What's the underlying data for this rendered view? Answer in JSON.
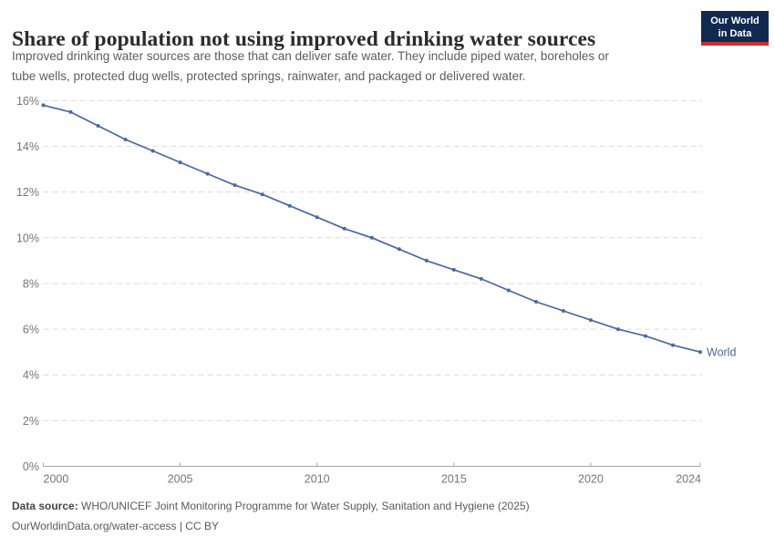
{
  "header": {
    "title": "Share of population not using improved drinking water sources",
    "subtitle_line1": "Improved drinking water sources are those that can deliver safe water. They include piped water, boreholes or",
    "subtitle_line2": "tube wells, protected dug wells, protected springs, rainwater, and packaged or delivered water."
  },
  "logo": {
    "line1": "Our World",
    "line2": "in Data"
  },
  "chart_data": {
    "type": "line",
    "title": "Share of population not using improved drinking water sources",
    "x": [
      2000,
      2001,
      2002,
      2003,
      2004,
      2005,
      2006,
      2007,
      2008,
      2009,
      2010,
      2011,
      2012,
      2013,
      2014,
      2015,
      2016,
      2017,
      2018,
      2019,
      2020,
      2021,
      2022,
      2023,
      2024
    ],
    "series": [
      {
        "name": "World",
        "color": "#4a68a2",
        "values": [
          15.8,
          15.5,
          14.9,
          14.3,
          13.8,
          13.3,
          12.8,
          12.3,
          11.9,
          11.4,
          10.9,
          10.4,
          10.0,
          9.5,
          9.0,
          8.6,
          8.2,
          7.7,
          7.2,
          6.8,
          6.4,
          6.0,
          5.7,
          5.3,
          5.0
        ]
      }
    ],
    "xlabel": "",
    "ylabel": "",
    "xlim": [
      2000,
      2024
    ],
    "ylim": [
      0,
      16
    ],
    "yticks": [
      0,
      2,
      4,
      6,
      8,
      10,
      12,
      14,
      16
    ],
    "ytick_suffix": "%",
    "xticks": [
      2000,
      2005,
      2010,
      2015,
      2020,
      2024
    ],
    "grid": "horizontal-dashed",
    "legend_position": "end-of-line-label",
    "markers": true
  },
  "footer": {
    "datasource_label": "Data source:",
    "datasource_text": "WHO/UNICEF Joint Monitoring Programme for Water Supply, Sanitation and Hygiene (2025)",
    "attribution": "OurWorldinData.org/water-access | CC BY"
  },
  "colors": {
    "line": "#4a68a2",
    "logo_bg": "#12294f",
    "logo_red": "#c5312d",
    "grid": "#dcdcdc",
    "axis": "#a6a6a6",
    "tick_label": "#767676",
    "title": "#2b2b2b",
    "subtitle": "#5d5d5d"
  }
}
